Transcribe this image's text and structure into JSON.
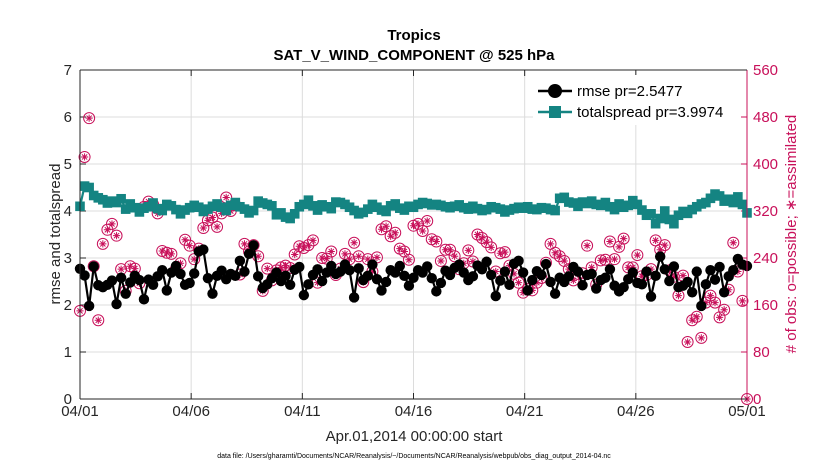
{
  "chart_data": {
    "type": "line",
    "title": "Tropics",
    "subtitle": "SAT_V_WIND_COMPONENT @ 525 hPa",
    "xlabel": "Apr.01,2014 00:00:00 start",
    "ylabel": "rmse and totalspread",
    "y2label": "# of obs: o=possible; ∗=assimilated",
    "footnote": "data file: /Users/gharamti/Documents/NCAR/Reanalysis/~/Documents/NCAR/Reanalysis/webpub/obs_diag_output_2014-04.nc",
    "xlim": [
      0,
      30
    ],
    "ylim": [
      0,
      7
    ],
    "y2lim": [
      0,
      560
    ],
    "x_ticks": [
      0,
      5,
      10,
      15,
      20,
      25,
      30
    ],
    "x_tick_labels": [
      "04/01",
      "04/06",
      "04/11",
      "04/16",
      "04/21",
      "04/26",
      "05/01"
    ],
    "y_ticks": [
      0,
      1,
      2,
      3,
      4,
      5,
      6,
      7
    ],
    "y2_ticks": [
      0,
      80,
      160,
      240,
      320,
      400,
      480,
      560
    ],
    "legend_position": "top-right",
    "series": [
      {
        "name": "rmse pr=2.5477",
        "color": "#000000",
        "axis": "left",
        "values": [
          2.77,
          2.63,
          1.98,
          2.82,
          2.42,
          2.38,
          2.43,
          2.52,
          2.02,
          2.58,
          2.24,
          2.48,
          2.62,
          2.53,
          2.12,
          2.54,
          2.43,
          2.61,
          2.74,
          2.31,
          2.69,
          2.83,
          2.66,
          2.43,
          2.47,
          2.67,
          3.14,
          3.18,
          2.57,
          2.24,
          2.62,
          2.73,
          2.55,
          2.66,
          2.62,
          2.94,
          2.71,
          3.09,
          3.27,
          2.61,
          2.36,
          2.44,
          2.57,
          2.69,
          2.51,
          2.62,
          2.43,
          2.75,
          2.81,
          2.21,
          2.44,
          2.64,
          2.76,
          2.51,
          2.69,
          2.83,
          2.66,
          2.71,
          2.86,
          2.74,
          2.16,
          2.78,
          2.53,
          2.62,
          2.86,
          2.55,
          2.31,
          2.49,
          2.74,
          2.69,
          2.83,
          2.62,
          2.41,
          2.58,
          2.74,
          2.69,
          2.82,
          2.57,
          2.29,
          2.47,
          2.73,
          2.64,
          2.79,
          2.86,
          2.69,
          2.53,
          2.61,
          2.84,
          2.76,
          2.92,
          2.64,
          2.19,
          2.52,
          2.71,
          2.43,
          2.88,
          2.94,
          2.69,
          2.31,
          2.53,
          2.72,
          2.64,
          2.87,
          2.49,
          2.24,
          2.58,
          2.49,
          2.61,
          2.81,
          2.71,
          2.42,
          2.64,
          2.66,
          2.35,
          2.53,
          2.58,
          2.76,
          2.41,
          2.29,
          2.38,
          2.55,
          2.69,
          2.47,
          2.44,
          2.71,
          2.18,
          2.62,
          3.03,
          2.76,
          2.51,
          2.82,
          2.38,
          2.41,
          2.49,
          2.27,
          2.71,
          1.98,
          2.44,
          2.74,
          2.54,
          2.81,
          2.27,
          2.61,
          2.74,
          2.98,
          2.86,
          2.83
        ]
      },
      {
        "name": "totalspread pr=3.9974",
        "color": "#148482",
        "axis": "left",
        "values": [
          4.1,
          4.53,
          4.5,
          4.33,
          4.28,
          4.24,
          4.17,
          4.21,
          4.18,
          4.26,
          4.04,
          4.15,
          4.07,
          3.98,
          4.06,
          4.09,
          4.17,
          4.05,
          4.01,
          4.14,
          4.11,
          4.03,
          3.94,
          4.02,
          4.07,
          4.12,
          4.08,
          3.99,
          4.04,
          4.1,
          4.15,
          4.08,
          4.01,
          4.12,
          4.18,
          4.09,
          4.04,
          3.96,
          4.01,
          4.21,
          4.17,
          4.14,
          4.11,
          3.92,
          3.96,
          3.87,
          3.84,
          3.94,
          4.09,
          4.14,
          4.23,
          4.11,
          4.02,
          4.13,
          4.09,
          4.05,
          4.19,
          4.18,
          4.14,
          4.08,
          4.01,
          3.94,
          3.97,
          4.04,
          4.14,
          4.08,
          4.02,
          3.99,
          4.11,
          4.15,
          4.06,
          4.02,
          4.1,
          4.08,
          4.14,
          4.18,
          4.16,
          4.13,
          4.14,
          4.12,
          4.09,
          4.07,
          4.1,
          4.13,
          4.07,
          4.04,
          4.1,
          4.05,
          4.01,
          4.03,
          4.09,
          4.07,
          4.04,
          3.98,
          4.02,
          4.05,
          4.08,
          4.06,
          4.09,
          4.04,
          4.03,
          4.07,
          4.06,
          4.03,
          4.01,
          4.27,
          4.29,
          4.19,
          4.17,
          4.1,
          4.19,
          4.16,
          4.21,
          4.14,
          4.12,
          4.18,
          4.09,
          4.03,
          4.15,
          4.08,
          4.12,
          4.22,
          4.14,
          4.02,
          3.91,
          3.94,
          3.73,
          3.84,
          4.0,
          3.82,
          3.73,
          3.91,
          3.99,
          3.95,
          4.03,
          4.09,
          4.15,
          4.18,
          4.27,
          4.36,
          4.32,
          4.21,
          4.25,
          4.18,
          4.3,
          4.14,
          3.96
        ]
      },
      {
        "name": "# of obs possible",
        "color": "#c8105a",
        "axis": "right",
        "marker": "o",
        "values": [
          150,
          412,
          478,
          226,
          134,
          264,
          288,
          298,
          278,
          221,
          184,
          226,
          222,
          197,
          327,
          336,
          331,
          316,
          252,
          249,
          247,
          221,
          231,
          271,
          261,
          238,
          256,
          291,
          304,
          309,
          293,
          316,
          343,
          320,
          330,
          212,
          264,
          251,
          262,
          243,
          184,
          222,
          202,
          219,
          224,
          227,
          223,
          246,
          260,
          257,
          262,
          270,
          198,
          240,
          239,
          251,
          211,
          222,
          247,
          238,
          266,
          243,
          199,
          238,
          217,
          241,
          289,
          294,
          277,
          283,
          256,
          251,
          237,
          295,
          298,
          286,
          303,
          272,
          268,
          235,
          254,
          254,
          243,
          221,
          231,
          253,
          234,
          280,
          274,
          267,
          258,
          217,
          248,
          250,
          227,
          213,
          198,
          181,
          187,
          185,
          198,
          206,
          232,
          264,
          249,
          243,
          235,
          221,
          202,
          213,
          214,
          261,
          224,
          195,
          236,
          237,
          268,
          238,
          259,
          273,
          224,
          224,
          245,
          209,
          211,
          221,
          270,
          254,
          262,
          219,
          208,
          176,
          210,
          97,
          134,
          140,
          104,
          164,
          176,
          164,
          139,
          152,
          186,
          266,
          217,
          167,
          0
        ]
      },
      {
        "name": "# of obs assimilated",
        "color": "#c8105a",
        "axis": "right",
        "marker": "*",
        "values": [
          150,
          412,
          478,
          226,
          134,
          264,
          288,
          298,
          278,
          221,
          184,
          226,
          222,
          197,
          327,
          336,
          331,
          316,
          252,
          249,
          247,
          221,
          231,
          271,
          261,
          238,
          256,
          291,
          304,
          309,
          293,
          316,
          343,
          320,
          330,
          212,
          264,
          251,
          262,
          243,
          184,
          222,
          202,
          219,
          224,
          227,
          223,
          246,
          260,
          257,
          262,
          270,
          198,
          240,
          239,
          251,
          211,
          222,
          247,
          238,
          266,
          243,
          199,
          238,
          217,
          241,
          289,
          294,
          277,
          283,
          256,
          251,
          237,
          295,
          298,
          286,
          303,
          272,
          268,
          235,
          254,
          254,
          243,
          221,
          231,
          253,
          234,
          280,
          274,
          267,
          258,
          217,
          248,
          250,
          227,
          213,
          198,
          181,
          187,
          185,
          198,
          206,
          232,
          264,
          249,
          243,
          235,
          221,
          202,
          213,
          214,
          261,
          224,
          195,
          236,
          237,
          268,
          238,
          259,
          273,
          224,
          224,
          245,
          209,
          211,
          221,
          270,
          254,
          262,
          219,
          208,
          176,
          210,
          97,
          134,
          140,
          104,
          164,
          176,
          164,
          139,
          152,
          186,
          266,
          217,
          167,
          0
        ]
      }
    ]
  }
}
